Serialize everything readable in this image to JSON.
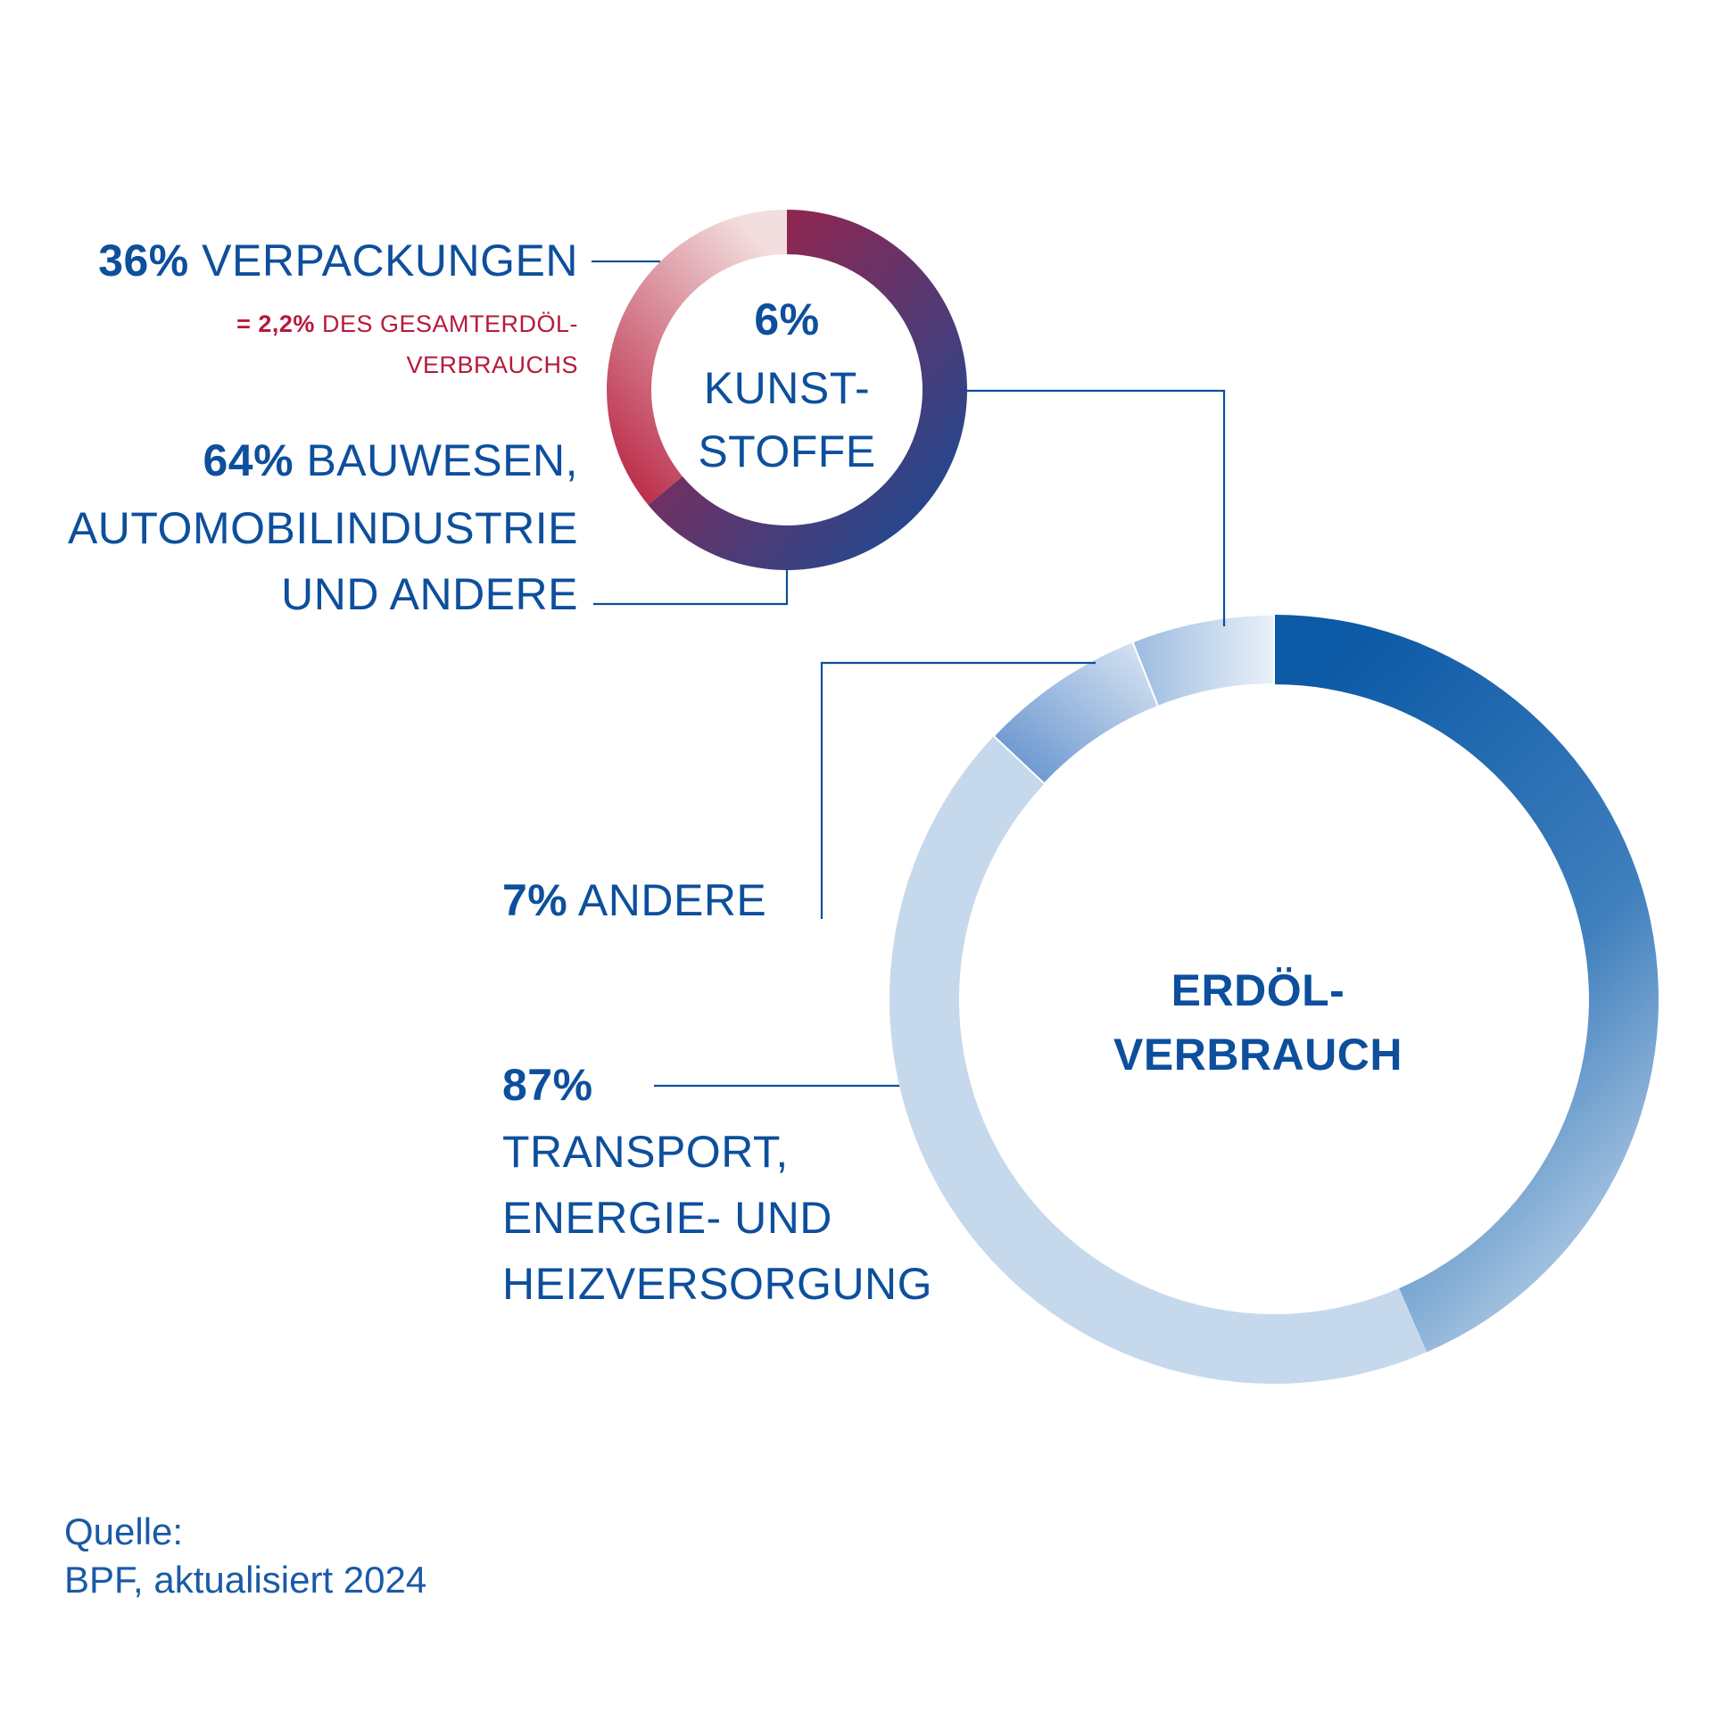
{
  "chart_data": [
    {
      "type": "pie",
      "name": "kunststoffe",
      "center_label": {
        "value": "6%",
        "line1": "KUNST-",
        "line2": "STOFFE"
      },
      "categories": [
        "VERPACKUNGEN",
        "BAUWESEN, AUTOMOBILINDUSTRIE UND ANDERE"
      ],
      "values": [
        36,
        64
      ],
      "labels": [
        {
          "pct": "36%",
          "text": "VERPACKUNGEN",
          "note_pct": "= 2,2%",
          "note_text": "DES GESAMTERDÖL-",
          "note_text2": "VERBRAUCHS"
        },
        {
          "pct": "64%",
          "text": "BAUWESEN,",
          "text2": "AUTOMOBILINDUSTRIE",
          "text3": "UND ANDERE"
        }
      ],
      "colors": {
        "packaging": "#b61a3a",
        "other": "#0d4f9c"
      }
    },
    {
      "type": "pie",
      "name": "erdoel",
      "center_label": {
        "line1": "ERDÖL-",
        "line2": "VERBRAUCH"
      },
      "categories": [
        "KUNSTSTOFFE",
        "ANDERE",
        "TRANSPORT, ENERGIE- UND HEIZVERSORGUNG"
      ],
      "values": [
        6,
        7,
        87
      ],
      "labels": [
        {
          "pct": "7%",
          "text": "ANDERE"
        },
        {
          "pct": "87%",
          "text": "TRANSPORT,",
          "text2": "ENERGIE- UND",
          "text3": "HEIZVERSORGUNG"
        }
      ],
      "colors": {
        "transport": "#0d5aa6",
        "andere": "#5c8ccb",
        "kunststoffe": "#9bbbe0",
        "light": "#c6d9ec"
      }
    }
  ],
  "source": {
    "line1": "Quelle:",
    "line2": "BPF, aktualisiert 2024"
  }
}
